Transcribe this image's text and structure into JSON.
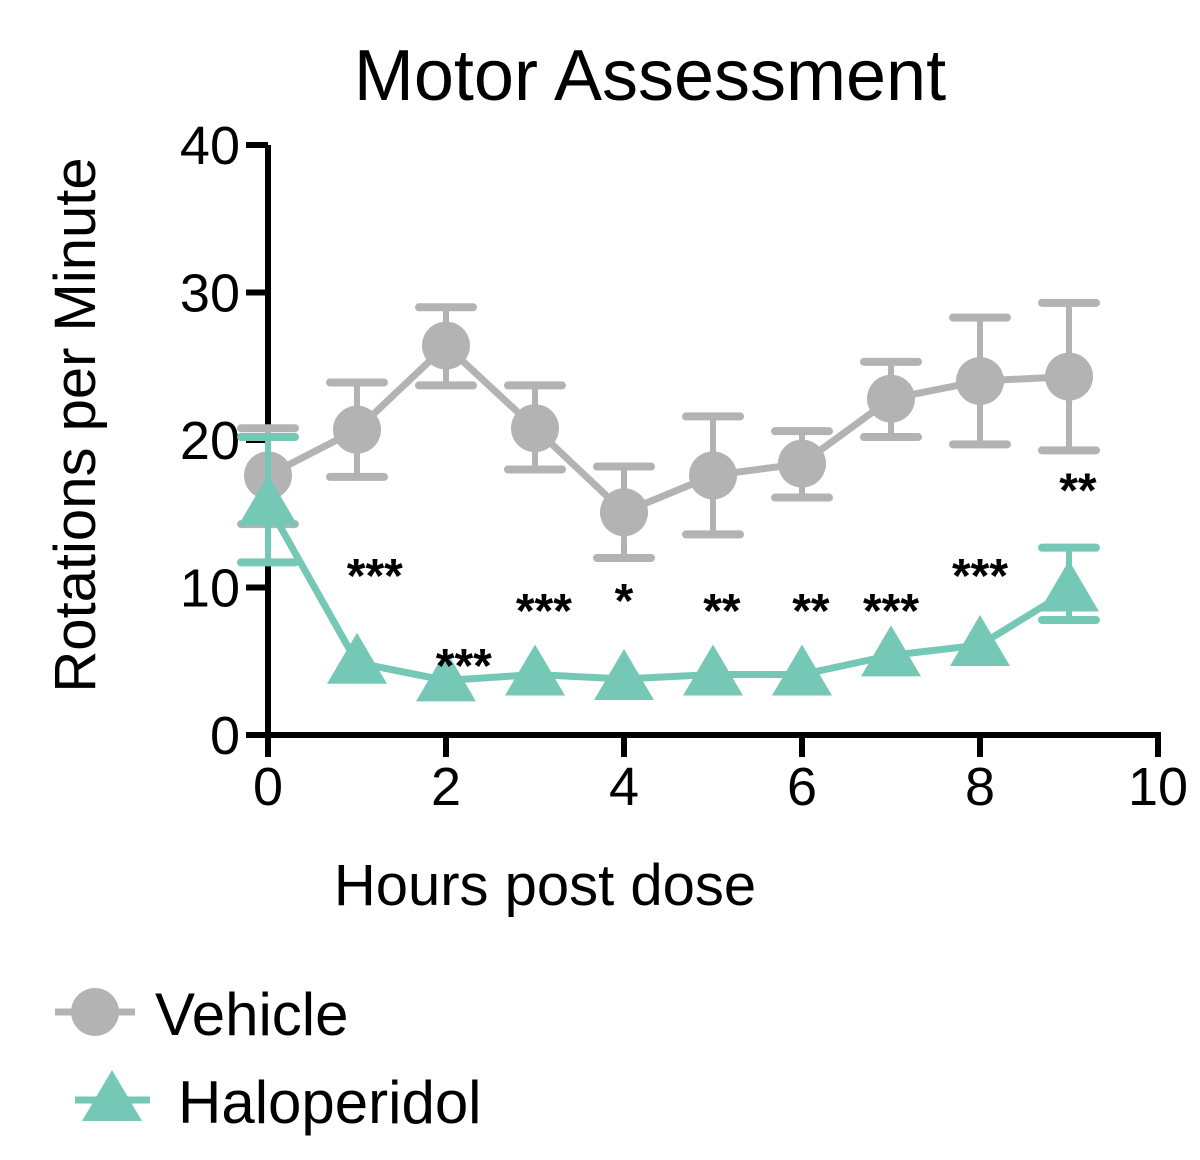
{
  "chart_data": {
    "type": "line",
    "title": "Motor Assessment",
    "xlabel": "Hours post dose",
    "ylabel": "Rotations per Minute",
    "xlim": [
      0,
      10
    ],
    "ylim": [
      0,
      40
    ],
    "xticks": [
      0,
      2,
      4,
      6,
      8,
      10
    ],
    "yticks": [
      0,
      10,
      20,
      30,
      40
    ],
    "grid": false,
    "legend_position": "bottom-left",
    "series": [
      {
        "name": "Vehicle",
        "marker": "circle",
        "color": "#b3b3b3",
        "x": [
          0,
          1,
          2,
          3,
          4,
          5,
          6,
          7,
          8,
          9
        ],
        "y": [
          17.6,
          20.7,
          26.4,
          20.8,
          15.1,
          17.6,
          18.4,
          22.8,
          24.0,
          24.3
        ],
        "err_upper": [
          20.8,
          23.9,
          29.0,
          23.7,
          18.2,
          21.6,
          20.6,
          25.3,
          28.3,
          29.3
        ],
        "err_lower": [
          14.3,
          17.5,
          23.7,
          18.0,
          12.0,
          13.6,
          16.1,
          20.2,
          19.7,
          19.3
        ]
      },
      {
        "name": "Haloperidol",
        "marker": "triangle",
        "color": "#76c8b6",
        "x": [
          0,
          1,
          2,
          3,
          4,
          5,
          6,
          7,
          8,
          9
        ],
        "y": [
          15.6,
          4.9,
          3.7,
          4.1,
          3.8,
          4.1,
          4.1,
          5.4,
          6.1,
          9.8
        ],
        "err_upper": [
          20.2,
          null,
          null,
          null,
          null,
          null,
          null,
          null,
          null,
          12.7
        ],
        "err_lower": [
          11.7,
          null,
          null,
          null,
          null,
          null,
          null,
          null,
          null,
          7.8
        ]
      }
    ],
    "annotations": [
      {
        "x": 1.2,
        "y": 11.2,
        "text": "***"
      },
      {
        "x": 2.2,
        "y": 5.1,
        "text": "***"
      },
      {
        "x": 3.1,
        "y": 8.8,
        "text": "***"
      },
      {
        "x": 4.0,
        "y": 9.5,
        "text": "*"
      },
      {
        "x": 5.1,
        "y": 8.8,
        "text": "**"
      },
      {
        "x": 6.1,
        "y": 8.8,
        "text": "**"
      },
      {
        "x": 7.0,
        "y": 8.8,
        "text": "***"
      },
      {
        "x": 8.0,
        "y": 11.2,
        "text": "***"
      },
      {
        "x": 9.1,
        "y": 17.0,
        "text": "**"
      }
    ]
  }
}
